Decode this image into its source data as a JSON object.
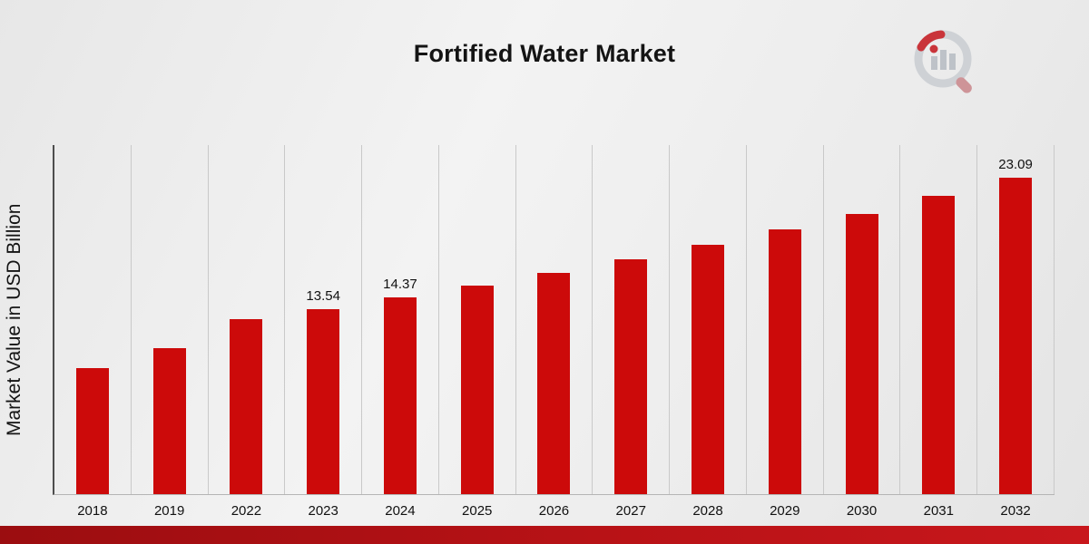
{
  "chart_data": {
    "type": "bar",
    "title": "Fortified Water Market",
    "xlabel": "",
    "ylabel": "Market Value in USD Billion",
    "categories": [
      "2018",
      "2019",
      "2022",
      "2023",
      "2024",
      "2025",
      "2026",
      "2027",
      "2028",
      "2029",
      "2030",
      "2031",
      "2032"
    ],
    "values": [
      9.2,
      10.65,
      12.76,
      13.54,
      14.37,
      15.25,
      16.18,
      17.16,
      18.21,
      19.32,
      20.5,
      21.76,
      23.09
    ],
    "data_labels": {
      "2023": "13.54",
      "2024": "14.37",
      "2032": "23.09"
    },
    "ylim": [
      0,
      25.5
    ],
    "grid": "vertical",
    "legend": "none",
    "bar_color": "#cc0a0a"
  },
  "branding": {
    "logo_name": "market-research-logo",
    "stripe_color_left": "#9b0d10",
    "stripe_color_right": "#c8171c"
  }
}
